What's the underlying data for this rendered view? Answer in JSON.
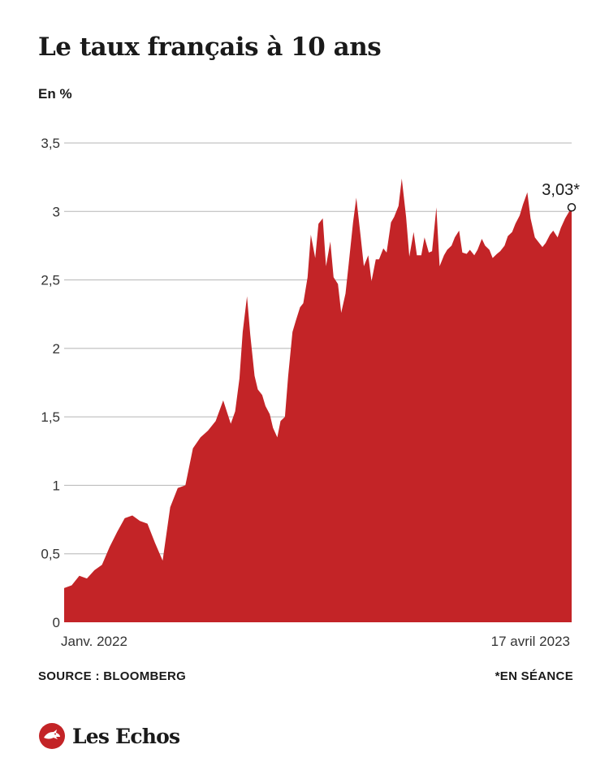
{
  "header": {
    "title": "Le taux français à 10 ans",
    "unit": "En %"
  },
  "footer": {
    "source": "SOURCE : BLOOMBERG",
    "note": "*EN SÉANCE",
    "brand": "Les Echos"
  },
  "colors": {
    "area": "#c32427",
    "grid": "#b5b5b5",
    "brand_red": "#c32427"
  },
  "chart_data": {
    "type": "area",
    "title": "Le taux français à 10 ans",
    "ylabel": "En %",
    "ylim": [
      0,
      3.5
    ],
    "y_ticks": [
      0,
      0.5,
      1,
      1.5,
      2,
      2.5,
      3,
      3.5
    ],
    "y_tick_labels": [
      "0",
      "0,5",
      "1",
      "1,5",
      "2",
      "2,5",
      "3",
      "3,5"
    ],
    "x_start_label": "Janv. 2022",
    "x_end_label": "17 avril 2023",
    "grid": true,
    "last_value_label": "3,03*",
    "series": [
      {
        "x": [
          "2022-01-03",
          "2022-01-10",
          "2022-01-17",
          "2022-01-24",
          "2022-01-31",
          "2022-02-07",
          "2022-02-14",
          "2022-02-21",
          "2022-02-28",
          "2022-03-07",
          "2022-03-14",
          "2022-03-21",
          "2022-03-28",
          "2022-04-04",
          "2022-04-11",
          "2022-04-18",
          "2022-04-25",
          "2022-05-02",
          "2022-05-09",
          "2022-05-16",
          "2022-05-23",
          "2022-05-30",
          "2022-06-06",
          "2022-06-10",
          "2022-06-14",
          "2022-06-17",
          "2022-06-21",
          "2022-06-24",
          "2022-06-28",
          "2022-07-01",
          "2022-07-05",
          "2022-07-08",
          "2022-07-12",
          "2022-07-15",
          "2022-07-19",
          "2022-07-22",
          "2022-07-26",
          "2022-07-29",
          "2022-08-02",
          "2022-08-05",
          "2022-08-09",
          "2022-08-12",
          "2022-08-16",
          "2022-08-19",
          "2022-08-23",
          "2022-08-26",
          "2022-08-30",
          "2022-09-02",
          "2022-09-06",
          "2022-09-09",
          "2022-09-13",
          "2022-09-16",
          "2022-09-20",
          "2022-09-23",
          "2022-09-27",
          "2022-09-30",
          "2022-10-04",
          "2022-10-07",
          "2022-10-11",
          "2022-10-14",
          "2022-10-18",
          "2022-10-21",
          "2022-10-25",
          "2022-10-28",
          "2022-11-01",
          "2022-11-04",
          "2022-11-08",
          "2022-11-11",
          "2022-11-15",
          "2022-11-18",
          "2022-11-22",
          "2022-11-25",
          "2022-11-29",
          "2022-12-02",
          "2022-12-06",
          "2022-12-09",
          "2022-12-13",
          "2022-12-16",
          "2022-12-20",
          "2022-12-23",
          "2022-12-27",
          "2022-12-30",
          "2023-01-03",
          "2023-01-06",
          "2023-01-10",
          "2023-01-13",
          "2023-01-17",
          "2023-01-20",
          "2023-01-24",
          "2023-01-27",
          "2023-01-31",
          "2023-02-03",
          "2023-02-07",
          "2023-02-10",
          "2023-02-14",
          "2023-02-17",
          "2023-02-21",
          "2023-02-24",
          "2023-02-28",
          "2023-03-03",
          "2023-03-07",
          "2023-03-10",
          "2023-03-14",
          "2023-03-17",
          "2023-03-21",
          "2023-03-24",
          "2023-03-28",
          "2023-03-31",
          "2023-04-04",
          "2023-04-07",
          "2023-04-11",
          "2023-04-14",
          "2023-04-17"
        ],
        "values": [
          0.25,
          0.27,
          0.34,
          0.32,
          0.38,
          0.42,
          0.55,
          0.66,
          0.76,
          0.78,
          0.74,
          0.72,
          0.58,
          0.45,
          0.84,
          0.98,
          1.0,
          1.27,
          1.35,
          1.4,
          1.47,
          1.62,
          1.45,
          1.54,
          1.78,
          2.12,
          2.38,
          2.1,
          1.8,
          1.7,
          1.66,
          1.58,
          1.52,
          1.42,
          1.35,
          1.47,
          1.5,
          1.8,
          2.12,
          2.2,
          2.3,
          2.33,
          2.52,
          2.83,
          2.66,
          2.91,
          2.95,
          2.6,
          2.78,
          2.52,
          2.47,
          2.26,
          2.4,
          2.62,
          2.92,
          3.1,
          2.82,
          2.6,
          2.68,
          2.49,
          2.65,
          2.65,
          2.73,
          2.7,
          2.92,
          2.96,
          3.04,
          3.24,
          2.96,
          2.67,
          2.85,
          2.68,
          2.68,
          2.81,
          2.7,
          2.71,
          3.03,
          2.6,
          2.68,
          2.72,
          2.75,
          2.81,
          2.86,
          2.7,
          2.69,
          2.72,
          2.68,
          2.72,
          2.8,
          2.75,
          2.72,
          2.66,
          2.69,
          2.71,
          2.75,
          2.82,
          2.85,
          2.91,
          2.97,
          3.05,
          3.14,
          2.95,
          2.81,
          2.78,
          2.74,
          2.77,
          2.83,
          2.86,
          2.81,
          2.88,
          2.95,
          2.99,
          3.03
        ]
      }
    ]
  }
}
